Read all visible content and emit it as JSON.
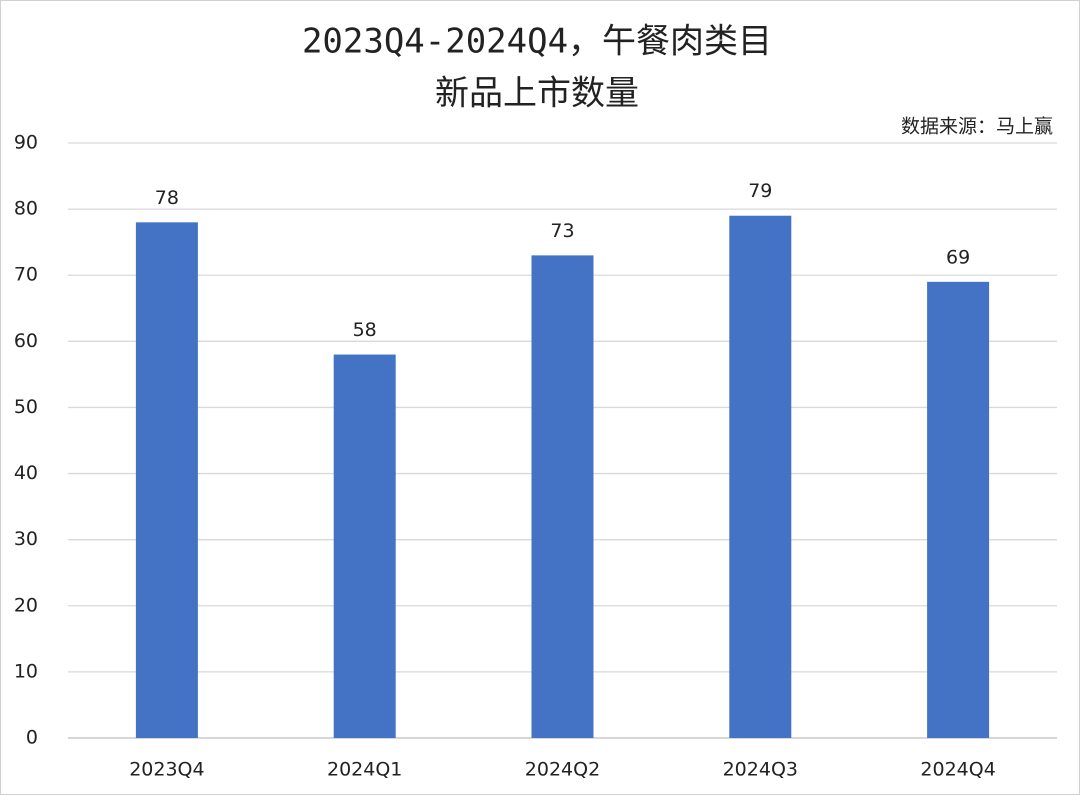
{
  "chart_data": {
    "type": "bar",
    "title": [
      "2023Q4-2024Q4，午餐肉类目",
      "新品上市数量"
    ],
    "source": "数据来源：马上赢",
    "categories": [
      "2023Q4",
      "2024Q1",
      "2024Q2",
      "2024Q3",
      "2024Q4"
    ],
    "values": [
      78,
      58,
      73,
      79,
      69
    ],
    "color": "#4472c4",
    "ylim": [
      0,
      90
    ],
    "yticks": [
      0,
      10,
      20,
      30,
      40,
      50,
      60,
      70,
      80,
      90
    ],
    "grid": true
  }
}
